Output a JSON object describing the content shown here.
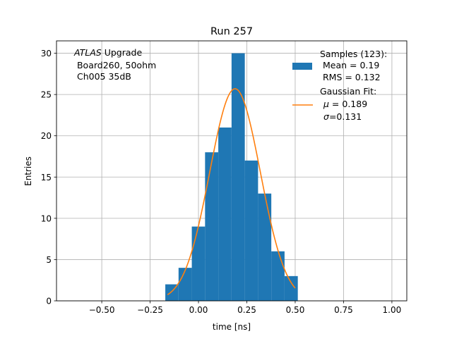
{
  "chart_data": {
    "type": "bar",
    "title": "Run 257",
    "xlabel": "time [ns]",
    "ylabel": "Entries",
    "xlim": [
      -0.734,
      1.077
    ],
    "ylim": [
      0,
      31.5
    ],
    "grid": true,
    "xticks": [
      -0.5,
      -0.25,
      0.0,
      0.25,
      0.5,
      0.75,
      1.0
    ],
    "xtick_labels": [
      "−0.50",
      "−0.25",
      "0.00",
      "0.25",
      "0.50",
      "0.75",
      "1.00"
    ],
    "yticks": [
      0,
      5,
      10,
      15,
      20,
      25,
      30
    ],
    "ytick_labels": [
      "0",
      "5",
      "10",
      "15",
      "20",
      "25",
      "30"
    ],
    "bin_edges": [
      -0.1715,
      -0.103,
      -0.0345,
      0.034,
      0.1025,
      0.171,
      0.2395,
      0.308,
      0.3765,
      0.445,
      0.5135
    ],
    "values": [
      2,
      4,
      9,
      18,
      21,
      30,
      17,
      13,
      6,
      3
    ],
    "bar_color": "#1f77b4",
    "fit": {
      "type": "gaussian",
      "amplitude": 25.7,
      "mu": 0.189,
      "sigma": 0.131,
      "x_range": [
        -0.16,
        0.5
      ],
      "color": "#ff7f0e"
    },
    "annotation": {
      "italic": "ATLAS",
      "line1": " Upgrade",
      "line2": " Board260, 50ohm",
      "line3": " Ch005 35dB"
    },
    "legend": {
      "placement": "top-right",
      "samples": {
        "line1": "Samples (123):",
        "line2": " Mean = 0.19",
        "line3": " RMS = 0.132"
      },
      "fit": {
        "line1": "Gaussian Fit:",
        "mu_label": "μ",
        "mu_value": " = 0.189",
        "sigma_label": "σ",
        "sigma_value": "=0.131"
      }
    }
  }
}
